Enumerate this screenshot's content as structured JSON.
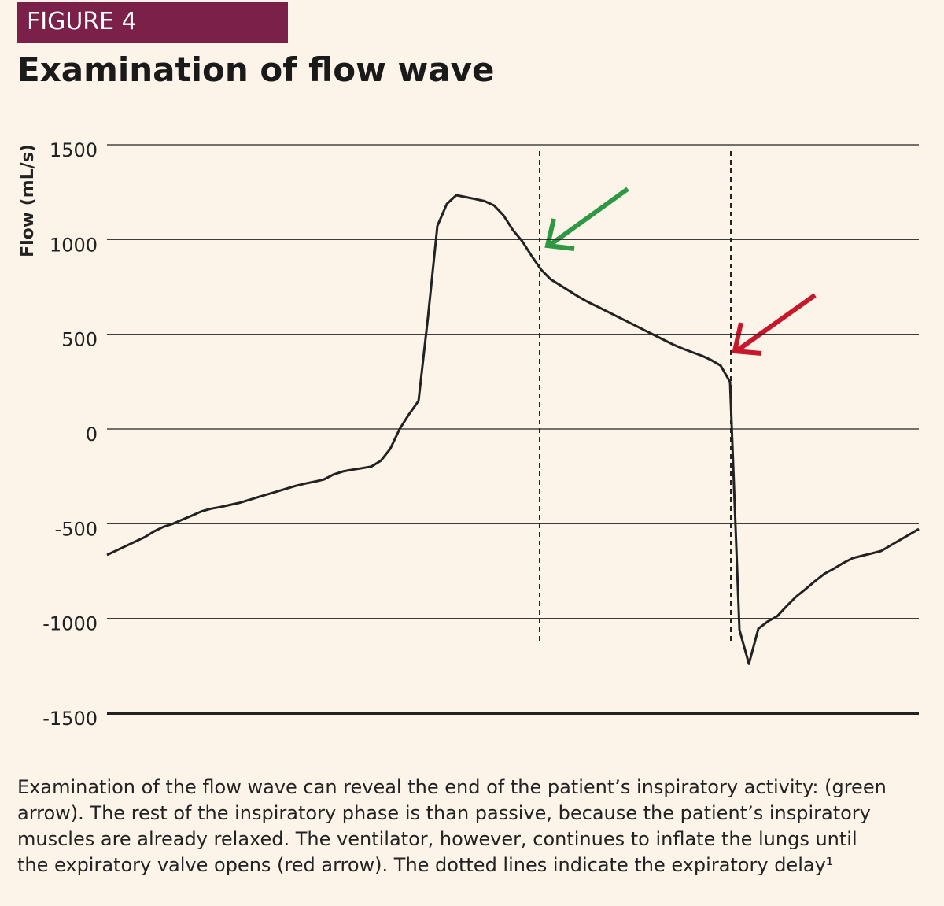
{
  "figure_label": "FIGURE 4",
  "caption": "Examination of the flow wave can reveal the end of the patient’s inspiratory activity: (green arrow). The rest of the inspiratory phase is than passive, because the patient’s inspiratory muscles are already relaxed. The ventilator, however, continues to inflate the lungs until the expiratory valve opens (red arrow). The dotted lines indicate the expiratory delay¹",
  "chart_data": {
    "type": "line",
    "title": "Examination of flow wave",
    "y_label": "Flow (mL/s)",
    "ylim": [
      -1500,
      1500
    ],
    "yticks": [
      -1500,
      -1000,
      -500,
      0,
      500,
      1000,
      1500
    ],
    "grid": true,
    "color": "#222222",
    "values": [
      -665,
      -641,
      -618,
      -594,
      -571,
      -540,
      -516,
      -500,
      -478,
      -457,
      -435,
      -421,
      -412,
      -401,
      -390,
      -375,
      -360,
      -345,
      -330,
      -315,
      -300,
      -288,
      -278,
      -266,
      -240,
      -224,
      -215,
      -207,
      -198,
      -168,
      -105,
      0,
      78,
      148,
      589,
      1072,
      1188,
      1234,
      1224,
      1214,
      1203,
      1180,
      1128,
      1050,
      990,
      912,
      840,
      790,
      759,
      728,
      697,
      669,
      645,
      620,
      595,
      570,
      545,
      520,
      495,
      470,
      445,
      424,
      405,
      387,
      364,
      335,
      249,
      -1060,
      -1240,
      -1054,
      -1016,
      -988,
      -935,
      -885,
      -845,
      -803,
      -764,
      -737,
      -707,
      -682,
      -669,
      -657,
      -644,
      -615,
      -586,
      -557,
      -528
    ]
  }
}
